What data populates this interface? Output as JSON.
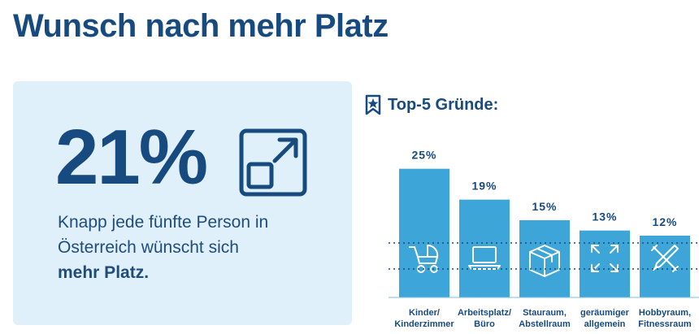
{
  "page_title": "Wunsch nach mehr Platz",
  "stat": {
    "number": "21%",
    "text_line1": "Knapp jede fünfte Person in",
    "text_line2": "Österreich wünscht sich",
    "text_bold": "mehr Platz."
  },
  "top5": {
    "title": "Top-5 Gründe:"
  },
  "colors": {
    "primary": "#174b7f",
    "bar": "#3ea5d8",
    "card_bg": "#dff0fb"
  },
  "chart_data": {
    "type": "bar",
    "categories": [
      [
        "Kinder/",
        "Kinderzimmer"
      ],
      [
        "Arbeitsplatz/",
        "Büro"
      ],
      [
        "Stauraum,",
        "Abstellraum"
      ],
      [
        "geräumiger",
        "allgemein"
      ],
      [
        "Hobbyraum,",
        "Fitnessraum"
      ]
    ],
    "values": [
      25,
      19,
      15,
      13,
      12
    ],
    "value_labels": [
      "25%",
      "19%",
      "15%",
      "13%",
      "12%"
    ],
    "icons": [
      "stroller-icon",
      "laptop-icon",
      "box-icon",
      "expand-arrows-icon",
      "tools-icon"
    ],
    "ylim": [
      0,
      30
    ],
    "title": "Top-5 Gründe:",
    "xlabel": "",
    "ylabel": "",
    "grid": false,
    "dotted_reference_lines": true
  }
}
